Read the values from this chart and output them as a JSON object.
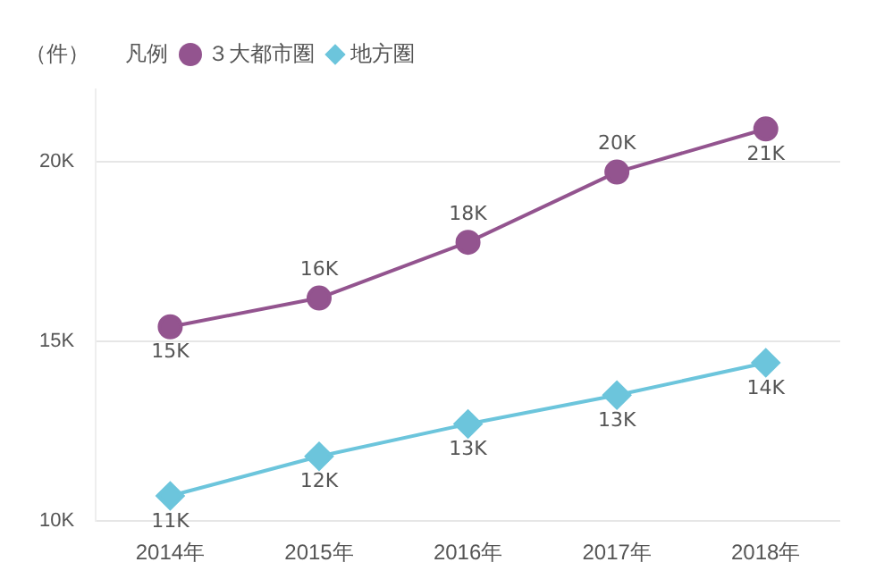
{
  "chart_data": {
    "type": "line",
    "ylabel": "（件）",
    "legend_title": "凡例",
    "legend": "top left",
    "grid": "y",
    "categories": [
      "2014年",
      "2015年",
      "2016年",
      "2017年",
      "2018年"
    ],
    "ylim": [
      10000,
      22000
    ],
    "yticks": [
      {
        "value": 10000,
        "label": "10K"
      },
      {
        "value": 15000,
        "label": "15K"
      },
      {
        "value": 20000,
        "label": "20K"
      }
    ],
    "series": [
      {
        "name": "３大都市圏",
        "color": "#93548f",
        "marker": "circle",
        "values": [
          15400,
          16200,
          17750,
          19700,
          20900
        ],
        "value_labels": [
          "15K",
          "16K",
          "18K",
          "20K",
          "21K"
        ]
      },
      {
        "name": "地方圏",
        "color": "#6cc5dc",
        "marker": "diamond",
        "values": [
          10700,
          11800,
          12700,
          13500,
          14400
        ],
        "value_labels": [
          "11K",
          "12K",
          "13K",
          "13K",
          "14K"
        ]
      }
    ]
  }
}
